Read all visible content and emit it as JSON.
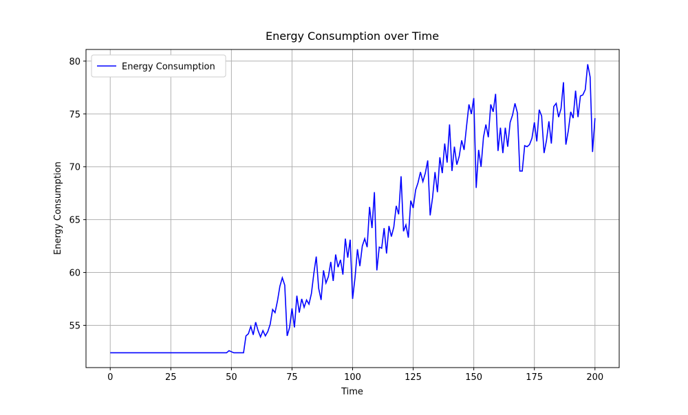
{
  "chart_data": {
    "type": "line",
    "title": "Energy Consumption over Time",
    "x_label": "Time",
    "y_label": "Energy Consumption",
    "x": [
      0,
      1,
      2,
      3,
      4,
      5,
      6,
      7,
      8,
      9,
      10,
      11,
      12,
      13,
      14,
      15,
      16,
      17,
      18,
      19,
      20,
      21,
      22,
      23,
      24,
      25,
      26,
      27,
      28,
      29,
      30,
      31,
      32,
      33,
      34,
      35,
      36,
      37,
      38,
      39,
      40,
      41,
      42,
      43,
      44,
      45,
      46,
      47,
      48,
      49,
      50,
      51,
      52,
      53,
      54,
      55,
      56,
      57,
      58,
      59,
      60,
      61,
      62,
      63,
      64,
      65,
      66,
      67,
      68,
      69,
      70,
      71,
      72,
      73,
      74,
      75,
      76,
      77,
      78,
      79,
      80,
      81,
      82,
      83,
      84,
      85,
      86,
      87,
      88,
      89,
      90,
      91,
      92,
      93,
      94,
      95,
      96,
      97,
      98,
      99,
      100,
      101,
      102,
      103,
      104,
      105,
      106,
      107,
      108,
      109,
      110,
      111,
      112,
      113,
      114,
      115,
      116,
      117,
      118,
      119,
      120,
      121,
      122,
      123,
      124,
      125,
      126,
      127,
      128,
      129,
      130,
      131,
      132,
      133,
      134,
      135,
      136,
      137,
      138,
      139,
      140,
      141,
      142,
      143,
      144,
      145,
      146,
      147,
      148,
      149,
      150,
      151,
      152,
      153,
      154,
      155,
      156,
      157,
      158,
      159,
      160,
      161,
      162,
      163,
      164,
      165,
      166,
      167,
      168,
      169,
      170,
      171,
      172,
      173,
      174,
      175,
      176,
      177,
      178,
      179,
      180,
      181,
      182,
      183,
      184,
      185,
      186,
      187,
      188,
      189,
      190,
      191,
      192,
      193,
      194,
      195,
      196,
      197,
      198,
      199,
      200
    ],
    "series": [
      {
        "name": "Energy Consumption",
        "color": "#0000ff",
        "values": [
          52.4,
          52.4,
          52.4,
          52.4,
          52.4,
          52.4,
          52.4,
          52.4,
          52.4,
          52.4,
          52.4,
          52.4,
          52.4,
          52.4,
          52.4,
          52.4,
          52.4,
          52.4,
          52.4,
          52.4,
          52.4,
          52.4,
          52.4,
          52.4,
          52.4,
          52.4,
          52.4,
          52.4,
          52.4,
          52.4,
          52.4,
          52.4,
          52.4,
          52.4,
          52.4,
          52.4,
          52.4,
          52.4,
          52.4,
          52.4,
          52.4,
          52.4,
          52.4,
          52.4,
          52.4,
          52.4,
          52.4,
          52.4,
          52.4,
          52.6,
          52.5,
          52.4,
          52.4,
          52.4,
          52.4,
          52.4,
          54.0,
          54.2,
          54.9,
          54.1,
          55.3,
          54.5,
          53.9,
          54.5,
          54.0,
          54.4,
          55.1,
          56.5,
          56.2,
          57.3,
          58.7,
          59.5,
          58.8,
          54.0,
          54.8,
          56.6,
          54.8,
          57.8,
          56.2,
          57.5,
          56.7,
          57.4,
          57.0,
          58.0,
          59.9,
          61.5,
          58.5,
          57.4,
          60.2,
          59.0,
          59.6,
          61.0,
          59.2,
          61.7,
          60.5,
          61.2,
          59.8,
          63.2,
          61.4,
          63.1,
          57.5,
          59.5,
          62.2,
          60.6,
          62.5,
          63.2,
          62.4,
          66.2,
          64.2,
          67.6,
          60.2,
          62.4,
          62.3,
          64.2,
          61.8,
          64.4,
          63.4,
          64.3,
          66.3,
          65.5,
          69.1,
          63.9,
          64.5,
          63.3,
          66.8,
          66.1,
          67.8,
          68.5,
          69.5,
          68.6,
          69.4,
          70.6,
          65.4,
          67.1,
          69.5,
          67.6,
          70.9,
          69.4,
          72.2,
          70.4,
          74.0,
          69.6,
          71.9,
          70.2,
          71.0,
          72.5,
          71.6,
          73.8,
          75.9,
          75.0,
          76.5,
          68.0,
          71.6,
          70.0,
          72.8,
          74.0,
          72.8,
          75.9,
          75.2,
          76.9,
          71.5,
          73.7,
          71.3,
          73.7,
          71.9,
          74.2,
          74.9,
          76.0,
          75.1,
          69.6,
          69.6,
          72.0,
          71.9,
          72.1,
          72.7,
          74.2,
          72.4,
          75.4,
          74.8,
          71.3,
          72.5,
          74.3,
          72.2,
          75.7,
          76.0,
          74.7,
          75.5,
          78.0,
          72.1,
          73.4,
          75.2,
          74.6,
          77.2,
          74.7,
          76.7,
          76.8,
          77.3,
          79.7,
          78.5,
          71.4,
          74.6
        ]
      }
    ],
    "xlim": [
      -10,
      210
    ],
    "ylim": [
      51.0,
      81.1
    ],
    "xticks": [
      0,
      25,
      50,
      75,
      100,
      125,
      150,
      175,
      200
    ],
    "yticks": [
      55,
      60,
      65,
      70,
      75,
      80
    ],
    "grid": true,
    "legend": "upper left"
  }
}
